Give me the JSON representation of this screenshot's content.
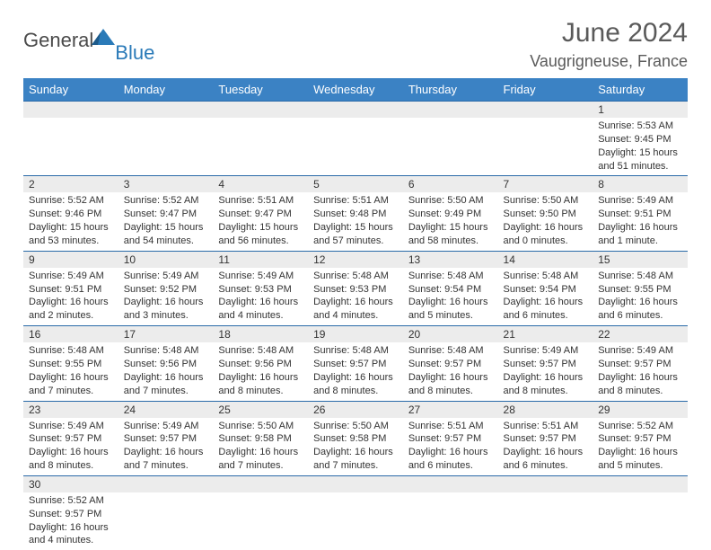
{
  "logo": {
    "main": "General",
    "sub": "Blue"
  },
  "title": "June 2024",
  "location": "Vaugrigneuse, France",
  "colors": {
    "header_bg": "#3b82c4",
    "header_text": "#ffffff",
    "date_bg": "#ececec",
    "date_border": "#2a6aa8",
    "body_text": "#333333",
    "logo_blue": "#2a7ab8",
    "logo_gray": "#4a4a4a"
  },
  "day_names": [
    "Sunday",
    "Monday",
    "Tuesday",
    "Wednesday",
    "Thursday",
    "Friday",
    "Saturday"
  ],
  "weeks": [
    {
      "dates": [
        "",
        "",
        "",
        "",
        "",
        "",
        "1"
      ],
      "cells": [
        "",
        "",
        "",
        "",
        "",
        "",
        "Sunrise: 5:53 AM\nSunset: 9:45 PM\nDaylight: 15 hours and 51 minutes."
      ]
    },
    {
      "dates": [
        "2",
        "3",
        "4",
        "5",
        "6",
        "7",
        "8"
      ],
      "cells": [
        "Sunrise: 5:52 AM\nSunset: 9:46 PM\nDaylight: 15 hours and 53 minutes.",
        "Sunrise: 5:52 AM\nSunset: 9:47 PM\nDaylight: 15 hours and 54 minutes.",
        "Sunrise: 5:51 AM\nSunset: 9:47 PM\nDaylight: 15 hours and 56 minutes.",
        "Sunrise: 5:51 AM\nSunset: 9:48 PM\nDaylight: 15 hours and 57 minutes.",
        "Sunrise: 5:50 AM\nSunset: 9:49 PM\nDaylight: 15 hours and 58 minutes.",
        "Sunrise: 5:50 AM\nSunset: 9:50 PM\nDaylight: 16 hours and 0 minutes.",
        "Sunrise: 5:49 AM\nSunset: 9:51 PM\nDaylight: 16 hours and 1 minute."
      ]
    },
    {
      "dates": [
        "9",
        "10",
        "11",
        "12",
        "13",
        "14",
        "15"
      ],
      "cells": [
        "Sunrise: 5:49 AM\nSunset: 9:51 PM\nDaylight: 16 hours and 2 minutes.",
        "Sunrise: 5:49 AM\nSunset: 9:52 PM\nDaylight: 16 hours and 3 minutes.",
        "Sunrise: 5:49 AM\nSunset: 9:53 PM\nDaylight: 16 hours and 4 minutes.",
        "Sunrise: 5:48 AM\nSunset: 9:53 PM\nDaylight: 16 hours and 4 minutes.",
        "Sunrise: 5:48 AM\nSunset: 9:54 PM\nDaylight: 16 hours and 5 minutes.",
        "Sunrise: 5:48 AM\nSunset: 9:54 PM\nDaylight: 16 hours and 6 minutes.",
        "Sunrise: 5:48 AM\nSunset: 9:55 PM\nDaylight: 16 hours and 6 minutes."
      ]
    },
    {
      "dates": [
        "16",
        "17",
        "18",
        "19",
        "20",
        "21",
        "22"
      ],
      "cells": [
        "Sunrise: 5:48 AM\nSunset: 9:55 PM\nDaylight: 16 hours and 7 minutes.",
        "Sunrise: 5:48 AM\nSunset: 9:56 PM\nDaylight: 16 hours and 7 minutes.",
        "Sunrise: 5:48 AM\nSunset: 9:56 PM\nDaylight: 16 hours and 8 minutes.",
        "Sunrise: 5:48 AM\nSunset: 9:57 PM\nDaylight: 16 hours and 8 minutes.",
        "Sunrise: 5:48 AM\nSunset: 9:57 PM\nDaylight: 16 hours and 8 minutes.",
        "Sunrise: 5:49 AM\nSunset: 9:57 PM\nDaylight: 16 hours and 8 minutes.",
        "Sunrise: 5:49 AM\nSunset: 9:57 PM\nDaylight: 16 hours and 8 minutes."
      ]
    },
    {
      "dates": [
        "23",
        "24",
        "25",
        "26",
        "27",
        "28",
        "29"
      ],
      "cells": [
        "Sunrise: 5:49 AM\nSunset: 9:57 PM\nDaylight: 16 hours and 8 minutes.",
        "Sunrise: 5:49 AM\nSunset: 9:57 PM\nDaylight: 16 hours and 7 minutes.",
        "Sunrise: 5:50 AM\nSunset: 9:58 PM\nDaylight: 16 hours and 7 minutes.",
        "Sunrise: 5:50 AM\nSunset: 9:58 PM\nDaylight: 16 hours and 7 minutes.",
        "Sunrise: 5:51 AM\nSunset: 9:57 PM\nDaylight: 16 hours and 6 minutes.",
        "Sunrise: 5:51 AM\nSunset: 9:57 PM\nDaylight: 16 hours and 6 minutes.",
        "Sunrise: 5:52 AM\nSunset: 9:57 PM\nDaylight: 16 hours and 5 minutes."
      ]
    },
    {
      "dates": [
        "30",
        "",
        "",
        "",
        "",
        "",
        ""
      ],
      "cells": [
        "Sunrise: 5:52 AM\nSunset: 9:57 PM\nDaylight: 16 hours and 4 minutes.",
        "",
        "",
        "",
        "",
        "",
        ""
      ]
    }
  ]
}
